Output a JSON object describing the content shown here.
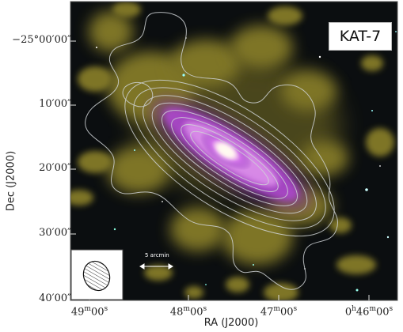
{
  "image": {
    "label": "KAT-7",
    "scale_bar_label": "5 arcmin",
    "y_axis": {
      "title": "Dec (J2000)",
      "ticks": [
        "−25°00′000″",
        "10′00″",
        "20′00″",
        "30′00″",
        "40′00″"
      ]
    },
    "x_axis": {
      "title": "RA (J2000)",
      "ticks": [
        "49ᵐ",
        "48ᵐ",
        "47ᵐ",
        "0ʰ46ᵐ"
      ]
    },
    "colors": {
      "sky": "#0b0e10",
      "hi_emission": "#a5982e",
      "galaxy_core": "#fff0f6",
      "galaxy_disk": "#b44ad8",
      "contours": "#cfd3d6"
    }
  }
}
